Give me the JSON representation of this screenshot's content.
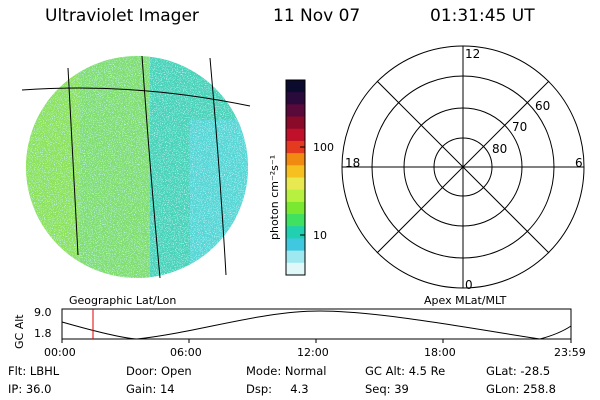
{
  "header": {
    "instrument": "Ultraviolet Imager",
    "date": "11 Nov 07",
    "time": "01:31:45 UT"
  },
  "colorbar": {
    "unit_label": "photon cm⁻²s⁻¹",
    "ticks": [
      {
        "value": 100,
        "label": "100"
      },
      {
        "value": 10,
        "label": "10"
      }
    ],
    "colors": [
      "#0b0b2e",
      "#2a0a3a",
      "#5a0a3a",
      "#8a0a2a",
      "#c0102a",
      "#e43a20",
      "#f08a10",
      "#f5c020",
      "#e8e850",
      "#b8f040",
      "#7ae830",
      "#40e060",
      "#20d0b0",
      "#40c8e0",
      "#a0e8f0",
      "#e0f8f8"
    ]
  },
  "left_panel": {
    "caption": "Geographic Lat/Lon"
  },
  "right_panel": {
    "caption": "Apex MLat/MLT",
    "mlt_labels": {
      "top": "12",
      "right": "6",
      "bottom": "0",
      "left": "18"
    },
    "lat_labels": [
      "60",
      "70",
      "80"
    ]
  },
  "altitude_plot": {
    "ylabel": "GC Alt",
    "yticks": [
      "9.0",
      "1.8"
    ],
    "xticks": [
      "00:00",
      "06:00",
      "12:00",
      "18:00",
      "23:59"
    ],
    "marker_time": "01:31:45"
  },
  "info": {
    "row1": [
      "Flt: LBHL",
      "Door: Open",
      "Mode: Normal",
      "GC Alt: 4.5 Re",
      "GLat: -28.5"
    ],
    "row2": [
      "IP: 36.0",
      "Gain: 14",
      "Dsp:     4.3",
      "Seq: 39",
      "GLon: 258.8"
    ]
  }
}
